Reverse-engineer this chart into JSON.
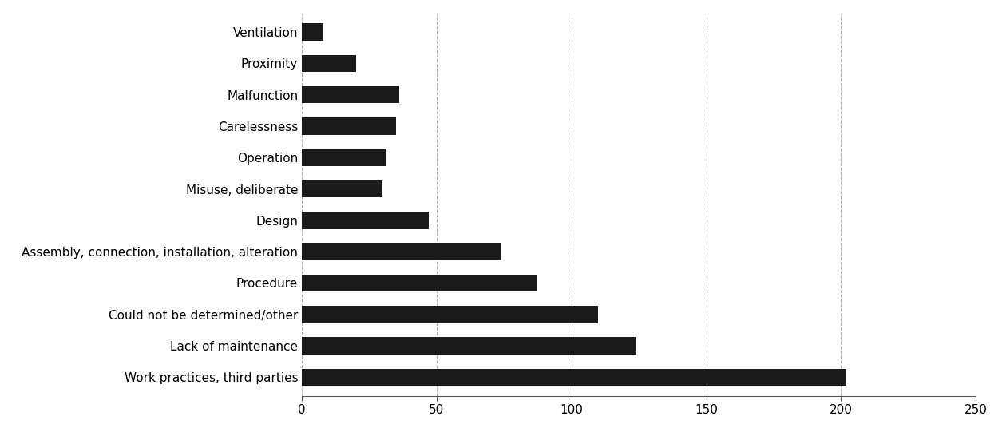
{
  "categories": [
    "Work practices, third parties",
    "Lack of maintenance",
    "Could not be determined/other",
    "Procedure",
    "Assembly, connection, installation, alteration",
    "Design",
    "Misuse, deliberate",
    "Operation",
    "Carelessness",
    "Malfunction",
    "Proximity",
    "Ventilation"
  ],
  "values": [
    202,
    124,
    110,
    87,
    74,
    47,
    30,
    31,
    35,
    36,
    20,
    8
  ],
  "bar_color": "#1a1a1a",
  "xlim": [
    0,
    250
  ],
  "xticks": [
    0,
    50,
    100,
    150,
    200,
    250
  ],
  "grid_color": "#b0b0b0",
  "background_color": "#ffffff",
  "bar_height": 0.55,
  "label_fontsize": 11,
  "tick_fontsize": 11
}
